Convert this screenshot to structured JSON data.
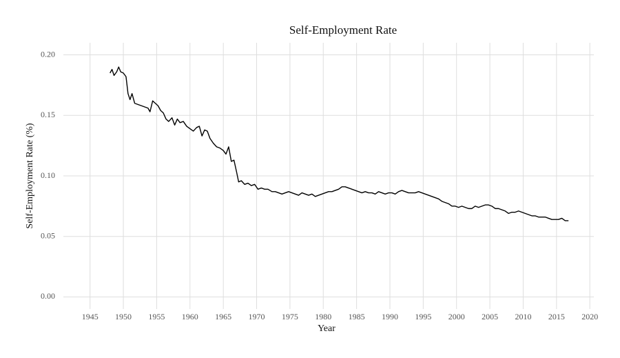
{
  "chart_data": {
    "type": "line",
    "title": "Self-Employment Rate",
    "x_label": "Year",
    "y_label": "Self-Employment Rate (%)",
    "x": [
      1948.0,
      1948.3,
      1948.6,
      1949.0,
      1949.3,
      1949.6,
      1950.0,
      1950.4,
      1950.7,
      1951.0,
      1951.3,
      1951.7,
      1952.2,
      1952.7,
      1953.2,
      1953.7,
      1954.0,
      1954.4,
      1954.8,
      1955.2,
      1955.6,
      1956.0,
      1956.4,
      1956.8,
      1957.3,
      1957.7,
      1958.1,
      1958.5,
      1959.0,
      1959.5,
      1960.0,
      1960.5,
      1961.0,
      1961.4,
      1961.8,
      1962.2,
      1962.6,
      1963.0,
      1963.5,
      1964.0,
      1964.5,
      1965.0,
      1965.4,
      1965.8,
      1966.2,
      1966.6,
      1967.0,
      1967.3,
      1967.7,
      1968.2,
      1968.7,
      1969.2,
      1969.7,
      1970.2,
      1970.7,
      1971.2,
      1971.7,
      1972.3,
      1972.8,
      1973.3,
      1973.8,
      1974.3,
      1974.8,
      1975.3,
      1975.8,
      1976.3,
      1976.8,
      1977.3,
      1977.8,
      1978.3,
      1978.8,
      1979.3,
      1979.8,
      1980.3,
      1980.8,
      1981.3,
      1981.8,
      1982.3,
      1982.8,
      1983.3,
      1983.8,
      1984.3,
      1984.8,
      1985.3,
      1985.8,
      1986.3,
      1986.8,
      1987.3,
      1987.8,
      1988.3,
      1988.8,
      1989.3,
      1989.8,
      1990.3,
      1990.8,
      1991.3,
      1991.8,
      1992.3,
      1992.8,
      1993.3,
      1993.8,
      1994.3,
      1994.8,
      1995.3,
      1995.8,
      1996.3,
      1996.8,
      1997.3,
      1997.8,
      1998.3,
      1998.8,
      1999.3,
      1999.8,
      2000.3,
      2000.8,
      2001.3,
      2001.8,
      2002.3,
      2002.8,
      2003.3,
      2003.8,
      2004.3,
      2004.8,
      2005.3,
      2005.8,
      2006.3,
      2006.8,
      2007.3,
      2007.8,
      2008.3,
      2008.8,
      2009.3,
      2009.8,
      2010.3,
      2010.8,
      2011.3,
      2011.8,
      2012.3,
      2012.8,
      2013.3,
      2013.8,
      2014.3,
      2014.8,
      2015.3,
      2015.8,
      2016.3,
      2016.8
    ],
    "series": [
      {
        "name": "Self-Employment Rate",
        "color": "#000000",
        "values": [
          0.185,
          0.188,
          0.183,
          0.186,
          0.19,
          0.186,
          0.185,
          0.182,
          0.168,
          0.163,
          0.168,
          0.16,
          0.159,
          0.158,
          0.157,
          0.156,
          0.153,
          0.162,
          0.16,
          0.158,
          0.154,
          0.152,
          0.147,
          0.145,
          0.148,
          0.142,
          0.147,
          0.144,
          0.145,
          0.141,
          0.139,
          0.137,
          0.14,
          0.141,
          0.133,
          0.138,
          0.137,
          0.131,
          0.127,
          0.124,
          0.123,
          0.121,
          0.118,
          0.124,
          0.112,
          0.113,
          0.103,
          0.095,
          0.096,
          0.093,
          0.094,
          0.092,
          0.093,
          0.089,
          0.09,
          0.089,
          0.089,
          0.087,
          0.087,
          0.086,
          0.085,
          0.086,
          0.087,
          0.086,
          0.085,
          0.084,
          0.086,
          0.085,
          0.084,
          0.085,
          0.083,
          0.084,
          0.085,
          0.086,
          0.087,
          0.087,
          0.088,
          0.089,
          0.091,
          0.091,
          0.09,
          0.089,
          0.088,
          0.087,
          0.086,
          0.087,
          0.086,
          0.086,
          0.085,
          0.087,
          0.086,
          0.085,
          0.086,
          0.086,
          0.085,
          0.087,
          0.088,
          0.087,
          0.086,
          0.086,
          0.086,
          0.087,
          0.086,
          0.085,
          0.084,
          0.083,
          0.082,
          0.081,
          0.079,
          0.078,
          0.077,
          0.075,
          0.075,
          0.074,
          0.075,
          0.074,
          0.073,
          0.073,
          0.075,
          0.074,
          0.075,
          0.076,
          0.076,
          0.075,
          0.073,
          0.073,
          0.072,
          0.071,
          0.069,
          0.07,
          0.07,
          0.071,
          0.07,
          0.069,
          0.068,
          0.067,
          0.067,
          0.066,
          0.066,
          0.066,
          0.065,
          0.064,
          0.064,
          0.064,
          0.065,
          0.063,
          0.063
        ]
      }
    ],
    "xlim": [
      1941,
      2020.6
    ],
    "xticks": [
      1945,
      1950,
      1955,
      1960,
      1965,
      1970,
      1975,
      1980,
      1985,
      1990,
      1995,
      2000,
      2005,
      2010,
      2015,
      2020
    ],
    "ylim": [
      -0.01,
      0.21
    ],
    "yticks": [
      {
        "value": 0,
        "label": "0.00"
      },
      {
        "value": 0.05,
        "label": "0.05"
      },
      {
        "value": 0.1,
        "label": "0.10"
      },
      {
        "value": 0.15,
        "label": "0.15"
      },
      {
        "value": 0.2,
        "label": "0.20"
      }
    ],
    "grid": true
  }
}
